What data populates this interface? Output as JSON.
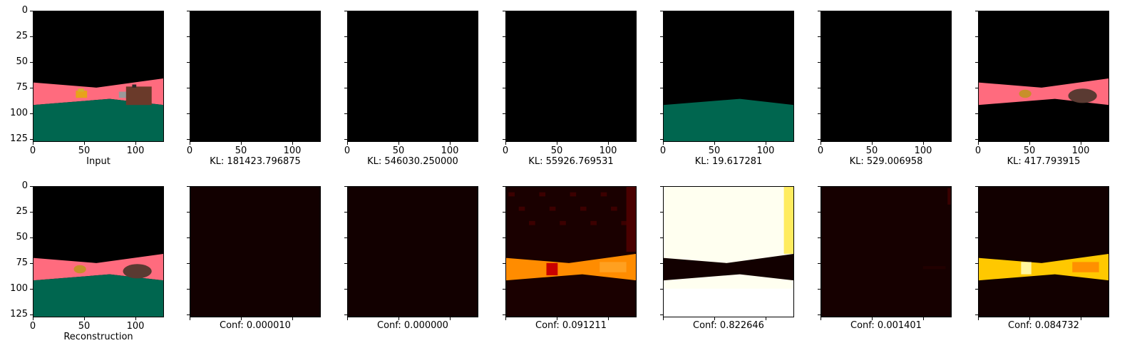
{
  "figure": {
    "top_row": [
      {
        "id": "input",
        "caption": "Input",
        "kind": "scene",
        "variant": "input"
      },
      {
        "id": "comp1",
        "caption": "KL: 181423.796875",
        "kind": "black"
      },
      {
        "id": "comp2",
        "caption": "KL: 546030.250000",
        "kind": "black"
      },
      {
        "id": "comp3",
        "caption": "KL: 55926.769531",
        "kind": "black"
      },
      {
        "id": "comp4",
        "caption": "KL: 19.617281",
        "kind": "ground_only"
      },
      {
        "id": "comp5",
        "caption": "KL: 529.006958",
        "kind": "black"
      },
      {
        "id": "comp6",
        "caption": "KL: 417.793915",
        "kind": "wall_only"
      }
    ],
    "bottom_row": [
      {
        "id": "reconstruction",
        "caption": "Reconstruction",
        "kind": "scene",
        "variant": "recon"
      },
      {
        "id": "conf1",
        "caption": "Conf: 0.000010",
        "kind": "heat_flat"
      },
      {
        "id": "conf2",
        "caption": "Conf: 0.000000",
        "kind": "heat_flat"
      },
      {
        "id": "conf3",
        "caption": "Conf: 0.091211",
        "kind": "heat_band"
      },
      {
        "id": "conf4",
        "caption": "Conf: 0.822646",
        "kind": "heat_bright"
      },
      {
        "id": "conf5",
        "caption": "Conf: 0.001401",
        "kind": "heat_flat2"
      },
      {
        "id": "conf6",
        "caption": "Conf: 0.084732",
        "kind": "heat_band2"
      }
    ],
    "y_ticks": [
      "0",
      "25",
      "50",
      "75",
      "100",
      "125"
    ],
    "y_tick_values": [
      0,
      25,
      50,
      75,
      100,
      125
    ],
    "x_ticks": [
      "0",
      "50",
      "100"
    ],
    "x_tick_values": [
      0,
      50,
      100
    ],
    "image_extent": 128,
    "colors": {
      "sky": "#000000",
      "wall": "#ff6b7e",
      "ground": "#00664f",
      "heat_dark": "#120000",
      "heat_orange": "#ff8c00",
      "heat_yellow": "#ffc800",
      "heat_white": "#fffff0"
    }
  }
}
